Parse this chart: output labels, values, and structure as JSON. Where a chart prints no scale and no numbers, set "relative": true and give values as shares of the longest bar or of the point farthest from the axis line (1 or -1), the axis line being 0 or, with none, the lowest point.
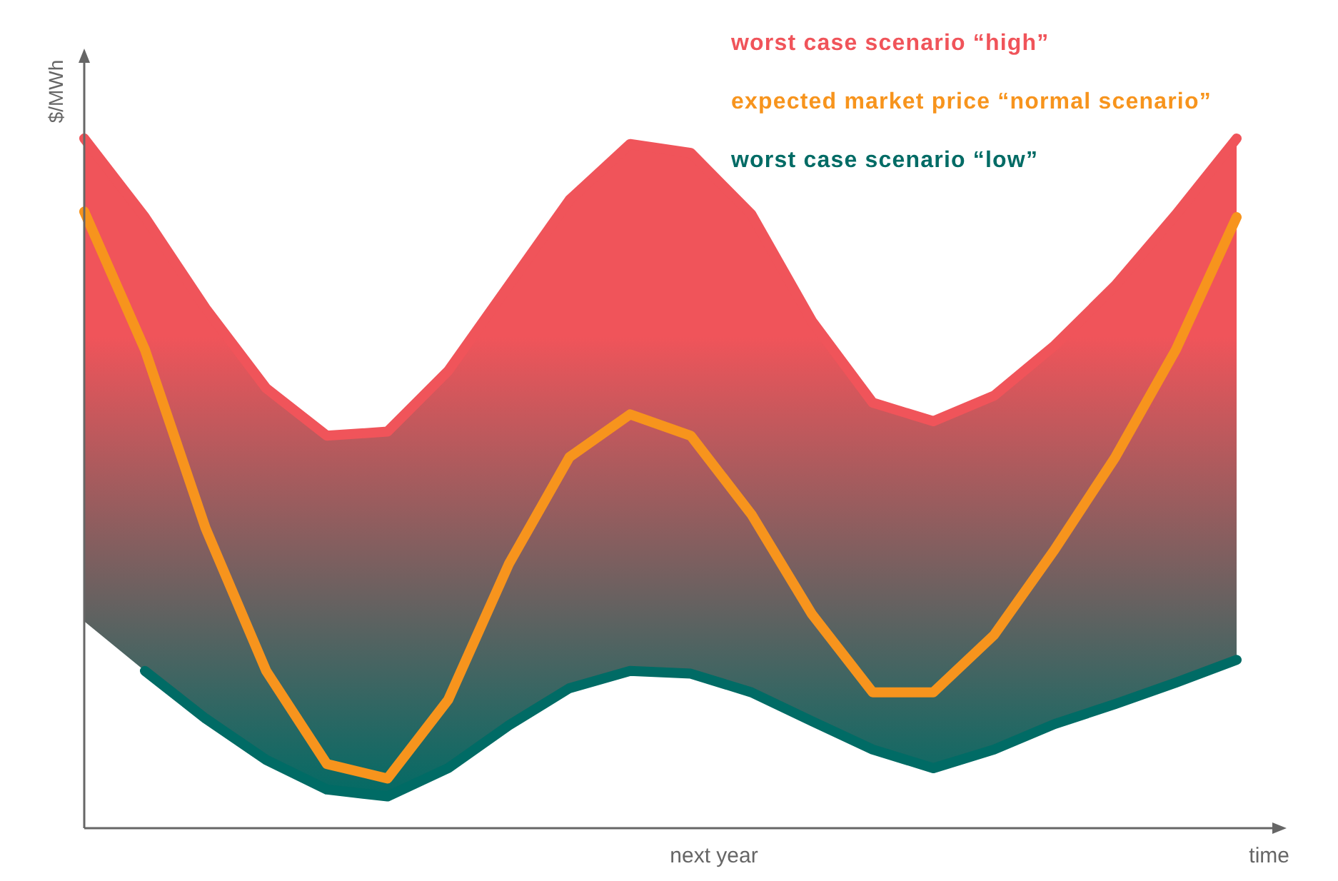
{
  "chart_data": {
    "type": "line",
    "relative": true,
    "xlabel": "time",
    "ylabel": "$/MWh",
    "annotations": [
      "next year"
    ],
    "marker": "none",
    "line_style": "solid",
    "categories": [
      null,
      null,
      null,
      null,
      null,
      null,
      null,
      null,
      null,
      null,
      null,
      null,
      null,
      null,
      null,
      null,
      null,
      null,
      null,
      null
    ],
    "series": [
      {
        "name": "worst case scenario “high”",
        "color": "#f0545a",
        "values": [
          1,
          0.886,
          0.754,
          0.638,
          0.569,
          0.575,
          0.663,
          0.787,
          0.911,
          0.992,
          0.979,
          0.89,
          0.735,
          0.617,
          0.59,
          0.627,
          0.7,
          0.787,
          0.89,
          1
        ],
        "upper": [
          1,
          0.886,
          0.754,
          0.638,
          0.569,
          0.575,
          0.663,
          0.787,
          0.911,
          0.992,
          0.979,
          0.89,
          0.735,
          0.617,
          0.59,
          0.627,
          0.7,
          0.787,
          0.89,
          1
        ],
        "lower": [
          0.3,
          0.228,
          0.159,
          0.099,
          0.056,
          0.046,
          0.087,
          0.149,
          0.203,
          0.228,
          0.224,
          0.197,
          0.155,
          0.114,
          0.087,
          0.114,
          0.151,
          0.18,
          0.211,
          0.244
        ]
      },
      {
        "name": "expected market price “normal scenario”",
        "color": "#f7941d",
        "values": [
          0.894,
          0.694,
          0.435,
          0.228,
          0.093,
          0.072,
          0.186,
          0.383,
          0.538,
          0.6,
          0.569,
          0.455,
          0.31,
          0.197,
          0.197,
          0.28,
          0.404,
          0.538,
          0.694,
          0.886
        ]
      },
      {
        "name": "worst case scenario “low”",
        "color": "#006b65",
        "values": [
          null,
          0.228,
          0.159,
          0.099,
          0.056,
          0.046,
          0.087,
          0.149,
          0.203,
          0.228,
          0.224,
          0.197,
          0.155,
          0.114,
          0.087,
          0.114,
          0.151,
          0.18,
          0.211,
          0.244
        ]
      }
    ]
  }
}
